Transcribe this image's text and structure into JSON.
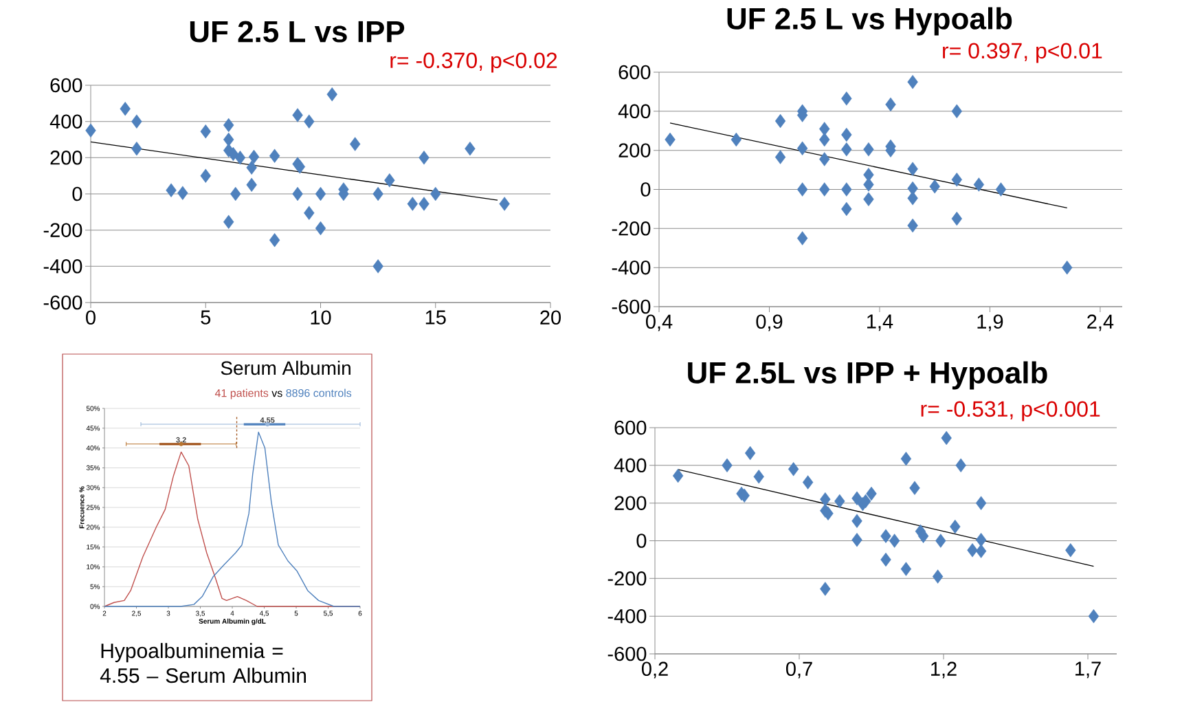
{
  "chart_data": [
    {
      "type": "scatter",
      "title": "UF 2.5 L vs IPP",
      "annotations": [
        "r= -0.370, p<0.02"
      ],
      "xlim": [
        0,
        20
      ],
      "xticks": [
        0,
        5,
        10,
        15,
        20
      ],
      "ylim": [
        -600,
        600
      ],
      "yticks": [
        -600,
        -400,
        -200,
        0,
        200,
        400,
        600
      ],
      "grid": "y",
      "marker": "diamond",
      "series": [
        {
          "color": "#4f81bd",
          "x": [
            0,
            1.5,
            2,
            2,
            3.5,
            4,
            5,
            5,
            6,
            6,
            6,
            6.2,
            6.5,
            7.1,
            7,
            7,
            6.3,
            6,
            8,
            8,
            9,
            9.5,
            9,
            9.1,
            9,
            9.5,
            10,
            10,
            10.5,
            11,
            11,
            11.5,
            12.5,
            12.5,
            13,
            14,
            14.5,
            14.5,
            15,
            16.5,
            18
          ],
          "values": [
            350,
            470,
            400,
            250,
            20,
            5,
            345,
            100,
            380,
            300,
            240,
            220,
            200,
            205,
            145,
            50,
            0,
            -155,
            210,
            -255,
            435,
            400,
            165,
            150,
            0,
            -105,
            0,
            -190,
            550,
            25,
            0,
            275,
            0,
            -400,
            75,
            -55,
            -55,
            200,
            0,
            250,
            -55
          ]
        },
        {
          "type": "line",
          "marker": "none",
          "color": "#000000",
          "x": [
            0,
            17.7
          ],
          "values": [
            287,
            -35
          ]
        }
      ]
    },
    {
      "type": "scatter",
      "title": "UF 2.5 L vs Hypoalb",
      "annotations": [
        "r= 0.397, p<0.01"
      ],
      "xlim": [
        0.4,
        2.5
      ],
      "xticks": [
        {
          "value": 0.4,
          "label": "0,4"
        },
        {
          "value": 0.9,
          "label": "0,9"
        },
        {
          "value": 1.4,
          "label": "1,4"
        },
        {
          "value": 1.9,
          "label": "1,9"
        },
        {
          "value": 2.4,
          "label": "2,4"
        }
      ],
      "ylim": [
        -600,
        600
      ],
      "yticks": [
        -600,
        -400,
        -200,
        0,
        200,
        400,
        600
      ],
      "grid": "y",
      "marker": "diamond",
      "series": [
        {
          "color": "#4f81bd",
          "x": [
            0.45,
            0.75,
            0.95,
            0.95,
            1.05,
            1.05,
            1.05,
            1.05,
            1.05,
            1.15,
            1.15,
            1.15,
            1.15,
            1.25,
            1.25,
            1.25,
            1.25,
            1.25,
            1.35,
            1.35,
            1.35,
            1.35,
            1.45,
            1.45,
            1.45,
            1.55,
            1.55,
            1.55,
            1.55,
            1.55,
            1.65,
            1.75,
            1.75,
            1.75,
            1.85,
            1.95,
            2.25
          ],
          "values": [
            255,
            255,
            350,
            165,
            400,
            380,
            210,
            0,
            -250,
            310,
            255,
            155,
            0,
            465,
            280,
            205,
            0,
            -100,
            205,
            75,
            25,
            -50,
            435,
            220,
            200,
            550,
            105,
            5,
            -45,
            -185,
            15,
            400,
            50,
            -150,
            25,
            0,
            -400
          ]
        },
        {
          "type": "line",
          "marker": "none",
          "color": "#000000",
          "x": [
            0.45,
            2.25
          ],
          "values": [
            340,
            -95
          ]
        }
      ]
    },
    {
      "type": "line",
      "title": "Serum Albumin",
      "xlabel": "Serum Albumin g/dL",
      "ylabel": "Frecuence %",
      "annotations": [
        "vs",
        "Hypoalbuminemia = 4.55 – Serum Albumin",
        {
          "text": "3.2",
          "x": 3.2,
          "y": 41
        },
        {
          "text": "4.55",
          "x": 4.55,
          "y": 46
        }
      ],
      "xlim": [
        2,
        6
      ],
      "xticks": [
        2,
        {
          "value": 2.5,
          "label": "2,5"
        },
        3,
        {
          "value": 3.5,
          "label": "3,5"
        },
        4,
        {
          "value": 4.5,
          "label": "4,5"
        },
        5,
        {
          "value": 5.5,
          "label": "5,5"
        },
        6
      ],
      "ylim": [
        0,
        50
      ],
      "yticks": [
        {
          "value": 0,
          "label": "0%"
        },
        {
          "value": 5,
          "label": "5%"
        },
        {
          "value": 10,
          "label": "10%"
        },
        {
          "value": 15,
          "label": "15%"
        },
        {
          "value": 20,
          "label": "20%"
        },
        {
          "value": 25,
          "label": "25%"
        },
        {
          "value": 30,
          "label": "30%"
        },
        {
          "value": 35,
          "label": "35%"
        },
        {
          "value": 40,
          "label": "40%"
        },
        {
          "value": 45,
          "label": "45%"
        },
        {
          "value": 50,
          "label": "50%"
        }
      ],
      "grid": "y",
      "series": [
        {
          "name": "41 patients",
          "color": "#c0504d",
          "x": [
            2,
            2.15,
            2.31,
            2.41,
            2.6,
            2.81,
            2.95,
            3.08,
            3.2,
            3.32,
            3.46,
            3.6,
            3.74,
            3.84,
            3.91,
            4.08,
            4.22,
            4.39,
            6
          ],
          "values": [
            0,
            1,
            1.5,
            4,
            12.5,
            20,
            24.5,
            33,
            39,
            35.5,
            22,
            13.5,
            7,
            2,
            1.5,
            2.5,
            1.5,
            0,
            0
          ]
        },
        {
          "name": "8896 controls",
          "color": "#4f81bd",
          "x": [
            2,
            3.19,
            3.4,
            3.53,
            3.7,
            3.87,
            4.05,
            4.15,
            4.26,
            4.32,
            4.41,
            4.51,
            4.61,
            4.72,
            4.87,
            5.01,
            5.18,
            5.35,
            5.59,
            6
          ],
          "values": [
            0,
            0,
            0.5,
            2.5,
            7.5,
            10.5,
            13.5,
            15.5,
            23.5,
            33.5,
            44,
            40,
            26.5,
            15.5,
            11.5,
            9,
            4,
            1.5,
            0,
            0
          ]
        },
        {
          "type": "scatter",
          "marker": "none",
          "color": "#b8742f",
          "x": [
            3.2
          ],
          "values": [
            41
          ],
          "xerrors": [
            [
              2.34,
              4.06
            ]
          ]
        },
        {
          "color": "#a0521a",
          "x": [
            2.86,
            3.51
          ],
          "values": [
            41,
            41
          ]
        },
        {
          "type": "scatter",
          "marker": "none",
          "color": "#95b3d7",
          "x": [
            4.55
          ],
          "values": [
            46
          ],
          "xerrors": [
            [
              2.57,
              6
            ]
          ]
        },
        {
          "color": "#4f81bd",
          "x": [
            4.18,
            4.83
          ],
          "values": [
            46,
            46
          ]
        },
        {
          "color": "#a0521a",
          "line_style": "dashed",
          "x": [
            4.07,
            4.07
          ],
          "values": [
            40,
            48
          ]
        }
      ]
    },
    {
      "type": "scatter",
      "title": "UF 2.5L vs IPP + Hypoalb",
      "annotations": [
        "r= -0.531, p<0.001"
      ],
      "xlim": [
        0.2,
        1.8
      ],
      "xticks": [
        {
          "value": 0.2,
          "label": "0,2"
        },
        {
          "value": 0.7,
          "label": "0,7"
        },
        {
          "value": 1.2,
          "label": "1,2"
        },
        {
          "value": 1.7,
          "label": "1,7"
        }
      ],
      "ylim": [
        -600,
        600
      ],
      "yticks": [
        -600,
        -400,
        -200,
        0,
        200,
        400,
        600
      ],
      "grid": "y",
      "marker": "diamond",
      "series": [
        {
          "color": "#4f81bd",
          "x": [
            0.28,
            0.45,
            0.53,
            0.5,
            0.51,
            0.56,
            0.68,
            0.73,
            0.79,
            0.79,
            0.8,
            0.79,
            0.84,
            0.9,
            0.9,
            0.9,
            0.92,
            0.93,
            0.95,
            1.0,
            1.03,
            1.0,
            1.07,
            1.07,
            1.1,
            1.12,
            1.13,
            1.19,
            1.18,
            1.21,
            1.26,
            1.24,
            1.33,
            1.33,
            1.3,
            1.33,
            1.64,
            1.72
          ],
          "values": [
            345,
            400,
            465,
            250,
            240,
            340,
            380,
            310,
            220,
            160,
            145,
            -255,
            210,
            225,
            105,
            5,
            195,
            210,
            250,
            25,
            0,
            -100,
            435,
            -150,
            280,
            50,
            25,
            0,
            -190,
            545,
            400,
            75,
            200,
            5,
            -50,
            -55,
            -50,
            -400
          ]
        },
        {
          "type": "line",
          "marker": "none",
          "color": "#000000",
          "x": [
            0.28,
            1.72
          ],
          "values": [
            378,
            -135
          ]
        }
      ]
    }
  ]
}
